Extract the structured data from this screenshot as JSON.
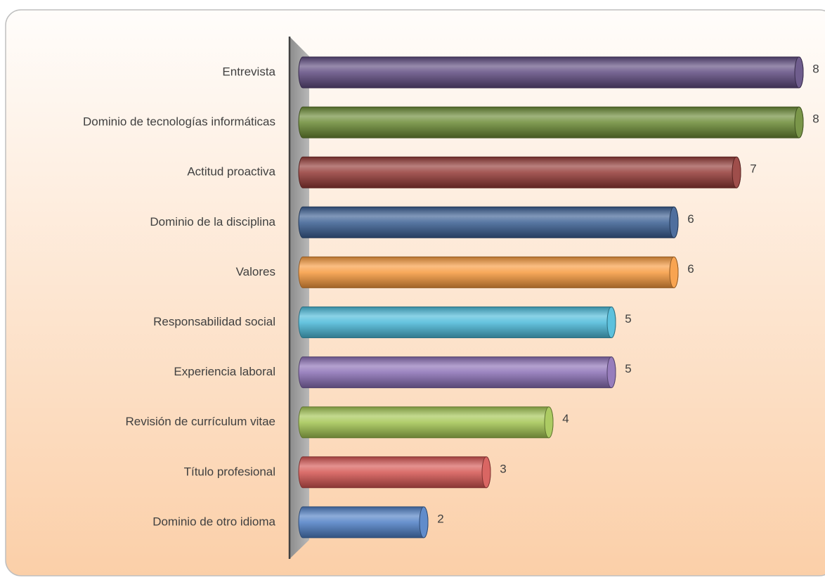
{
  "chart_data": {
    "type": "bar",
    "orientation": "horizontal",
    "categories": [
      "Entrevista",
      "Dominio de tecnologías informáticas",
      "Actitud proactiva",
      "Dominio de la disciplina",
      "Valores",
      "Responsabilidad social",
      "Experiencia laboral",
      "Revisión de currículum vitae",
      "Título profesional",
      "Dominio de otro idioma"
    ],
    "values": [
      8,
      8,
      7,
      6,
      6,
      5,
      5,
      4,
      3,
      2
    ],
    "colors": [
      "#5f4b80",
      "#6b8a35",
      "#943a37",
      "#3b5f93",
      "#f79a3e",
      "#4bbad9",
      "#8b6fb5",
      "#a3c552",
      "#d55552",
      "#4f7fc5"
    ],
    "xlim": [
      0,
      8
    ]
  }
}
